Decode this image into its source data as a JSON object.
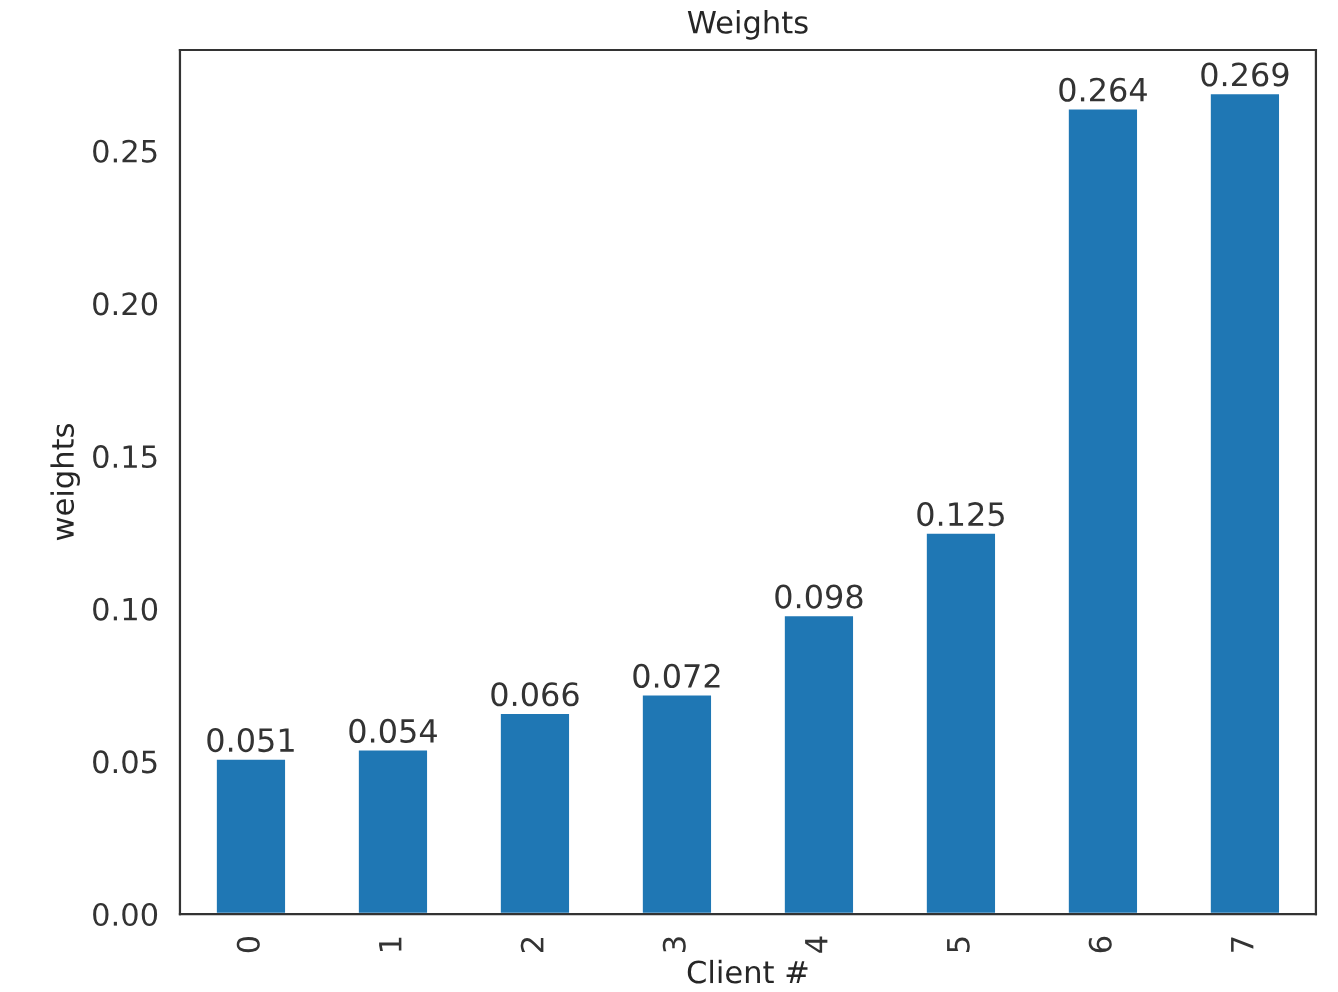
{
  "chart_data": {
    "type": "bar",
    "title": "Weights",
    "xlabel": "Client #",
    "ylabel": "weights",
    "categories": [
      "0",
      "1",
      "2",
      "3",
      "4",
      "5",
      "6",
      "7"
    ],
    "values": [
      0.051,
      0.054,
      0.066,
      0.072,
      0.098,
      0.125,
      0.264,
      0.269
    ],
    "color": "#1f77b4",
    "ylim": [
      0,
      0.283
    ],
    "yticks": [
      {
        "value": 0,
        "label": "0.00"
      },
      {
        "value": 0.05,
        "label": "0.05"
      },
      {
        "value": 0.1,
        "label": "0.10"
      },
      {
        "value": 0.15,
        "label": "0.15"
      },
      {
        "value": 0.2,
        "label": "0.20"
      },
      {
        "value": 0.25,
        "label": "0.25"
      }
    ],
    "grid": false,
    "data_labels": true
  }
}
